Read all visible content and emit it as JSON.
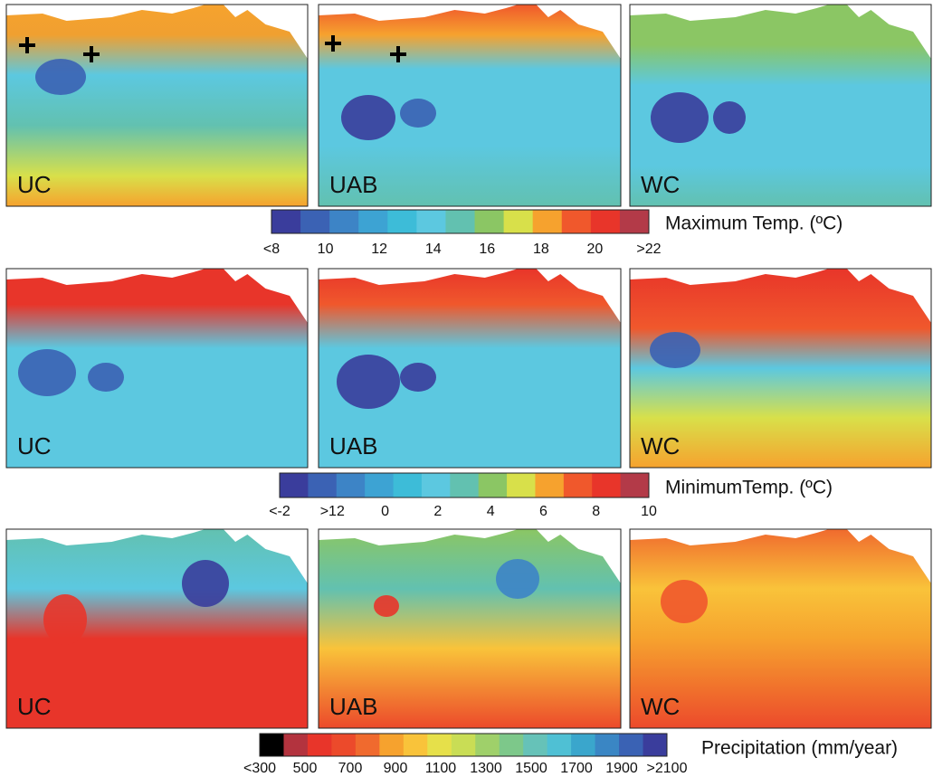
{
  "rows": [
    {
      "panels": [
        "UC",
        "UAB",
        "WC"
      ],
      "colorbar": {
        "title": "Maximum Temp. (ºC)",
        "labels": [
          "<8",
          "10",
          "12",
          "14",
          "16",
          "18",
          "20",
          ">22"
        ],
        "colors": [
          "#3a3d9c",
          "#3b62b4",
          "#3d84c6",
          "#3da3d3",
          "#3dbcd8",
          "#5cc8e0",
          "#62c1b0",
          "#8bc664",
          "#d8e04a",
          "#f6a22e",
          "#f0582c",
          "#e8352a",
          "#b33a48"
        ]
      }
    },
    {
      "panels": [
        "UC",
        "UAB",
        "WC"
      ],
      "colorbar": {
        "title": "MinimumTemp. (ºC)",
        "labels": [
          "<-2",
          ">12",
          "0",
          "2",
          "4",
          "6",
          "8",
          "10"
        ],
        "colors": [
          "#3a3d9c",
          "#3b62b4",
          "#3d84c6",
          "#3da3d3",
          "#3dbcd8",
          "#5cc8e0",
          "#62c1b0",
          "#8bc664",
          "#d8e04a",
          "#f6a22e",
          "#f0582c",
          "#e8352a",
          "#b33a48"
        ]
      }
    },
    {
      "panels": [
        "UC",
        "UAB",
        "WC"
      ],
      "colorbar": {
        "title": "Precipitation (mm/year)",
        "labels": [
          "<300",
          "500",
          "700",
          "900",
          "1100",
          "1300",
          "1500",
          "1700",
          "1900",
          ">2100"
        ],
        "colors": [
          "#000000",
          "#b3333e",
          "#e8352a",
          "#ec4a2b",
          "#f06a2e",
          "#f6a22e",
          "#f9c33a",
          "#e6e04a",
          "#c9dd55",
          "#9fd06a",
          "#7dc88a",
          "#66c2b8",
          "#4fc0d4",
          "#3aa6cc",
          "#3a86c4",
          "#3a62b4",
          "#3a3d9c"
        ]
      }
    }
  ]
}
